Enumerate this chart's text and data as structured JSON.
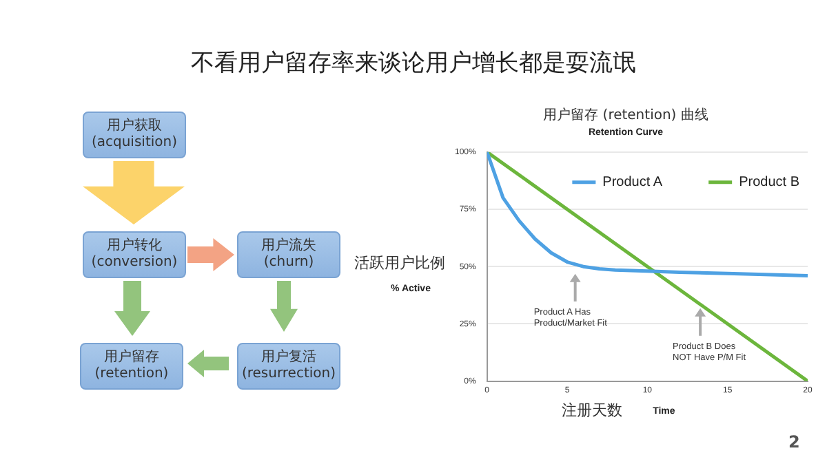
{
  "chart_data": [
    {
      "type": "other",
      "title": "不看用户留存率来谈论用户增长都是耍流氓",
      "annotations": [
        "用户获取\n(acquisition)",
        "用户转化\n(conversion)",
        "用户流失\n(churn)",
        "用户留存\n(retention)",
        "用户复活\n(resurrection)",
        "2"
      ]
    },
    {
      "type": "line",
      "title": "用户留存 (retention) 曲线",
      "subtitle": "Retention Curve",
      "xlabel": "Time",
      "ylabel": "% Active",
      "xlim": [
        0,
        20
      ],
      "xticks": [
        0,
        5,
        10,
        15,
        20
      ],
      "ylim": [
        0,
        100
      ],
      "yticks": [
        {
          "value": 0,
          "label": "0%"
        },
        {
          "value": 25,
          "label": "25%"
        },
        {
          "value": 50,
          "label": "50%"
        },
        {
          "value": 75,
          "label": "75%"
        },
        {
          "value": 100,
          "label": "100%"
        }
      ],
      "grid": "y",
      "legend": "top right",
      "marker": "none",
      "series": [
        {
          "name": "Product A",
          "color": "#4ea1e3",
          "x": [
            0,
            1,
            2,
            3,
            4,
            5,
            6,
            7,
            8,
            10,
            12,
            15,
            20
          ],
          "values": [
            100,
            80,
            70,
            62,
            56,
            52,
            50,
            49,
            48.5,
            48,
            47.5,
            47,
            46
          ]
        },
        {
          "name": "Product B",
          "color": "#6cb63c",
          "x": [
            0,
            20
          ],
          "values": [
            100,
            0
          ]
        }
      ],
      "annotations": [
        "活跃用户比例",
        "注册天数",
        {
          "text": "Product A Has\nProduct/Market Fit",
          "x": 5.5,
          "y": 48
        },
        {
          "text": "Product B Does\nNOT Have P/M Fit",
          "x": 13.3,
          "y": 33
        }
      ]
    }
  ]
}
